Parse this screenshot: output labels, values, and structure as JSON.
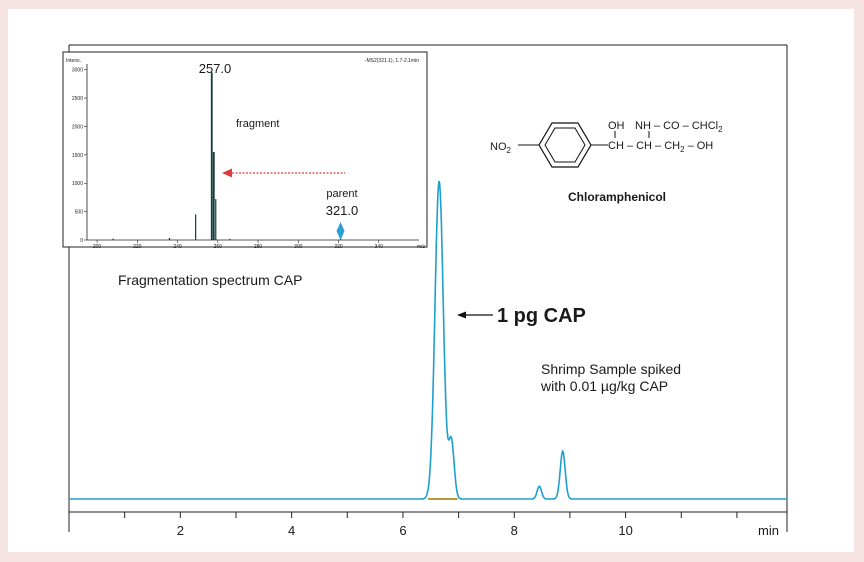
{
  "colors": {
    "background": "#f6e4e2",
    "trace": "#1e9fd0",
    "spectrum": "#0f3b3a",
    "arrow_red": "#e03a3a",
    "parent_marker": "#2a9fd8",
    "baseline_highlight": "#b59a3a"
  },
  "chart_data": [
    {
      "type": "line",
      "title": "",
      "xlabel": "min",
      "ylabel": "",
      "xlim": [
        0,
        12.9
      ],
      "ylim": [
        0,
        1
      ],
      "x_ticks": [
        2,
        4,
        6,
        8,
        10
      ],
      "x_tick_labels": [
        "2",
        "4",
        "6",
        "8",
        "10"
      ],
      "grid": false,
      "peaks": [
        {
          "rt": 6.65,
          "height": 1.0
        },
        {
          "rt": 6.87,
          "height": 0.18
        },
        {
          "rt": 8.45,
          "height": 0.04
        },
        {
          "rt": 8.87,
          "height": 0.15
        }
      ],
      "annotations": {
        "peak_label": "1 pg CAP",
        "sample_line1": "Shrimp Sample spiked",
        "sample_line2": "with 0.01 µg/kg CAP",
        "compound_name": "Chloramphenicol"
      }
    },
    {
      "type": "bar",
      "title": "Fragmentation spectrum  CAP",
      "xlabel": "m/z",
      "ylabel": "Intens.",
      "header_right": "-MS2(321.1), 1.7-2.1min",
      "xlim": [
        195,
        360
      ],
      "ylim": [
        0,
        3100
      ],
      "x_ticks": [
        200,
        220,
        240,
        260,
        280,
        300,
        320,
        340
      ],
      "y_ticks": [
        0,
        500,
        1000,
        1500,
        2000,
        2500,
        3000
      ],
      "peaks": [
        {
          "mz": 208,
          "intensity": 25
        },
        {
          "mz": 236,
          "intensity": 35
        },
        {
          "mz": 249,
          "intensity": 450
        },
        {
          "mz": 257,
          "intensity": 2950
        },
        {
          "mz": 258,
          "intensity": 1550
        },
        {
          "mz": 259,
          "intensity": 720
        },
        {
          "mz": 266,
          "intensity": 20
        },
        {
          "mz": 321,
          "intensity": 40
        }
      ],
      "labels": {
        "fragment_mz": "257.0",
        "fragment_text": "fragment",
        "parent_text": "parent",
        "parent_mz": "321.0"
      }
    }
  ],
  "structure": {
    "substituent_left": "NO",
    "substituent_left_sub": "2",
    "oh_top": "OH",
    "nh_chain": "NH – CO – CHCl",
    "nh_chain_sub": "2",
    "lower_chain": "CH – CH – CH",
    "lower_chain_sub": "2",
    "lower_chain_end": "– OH"
  }
}
